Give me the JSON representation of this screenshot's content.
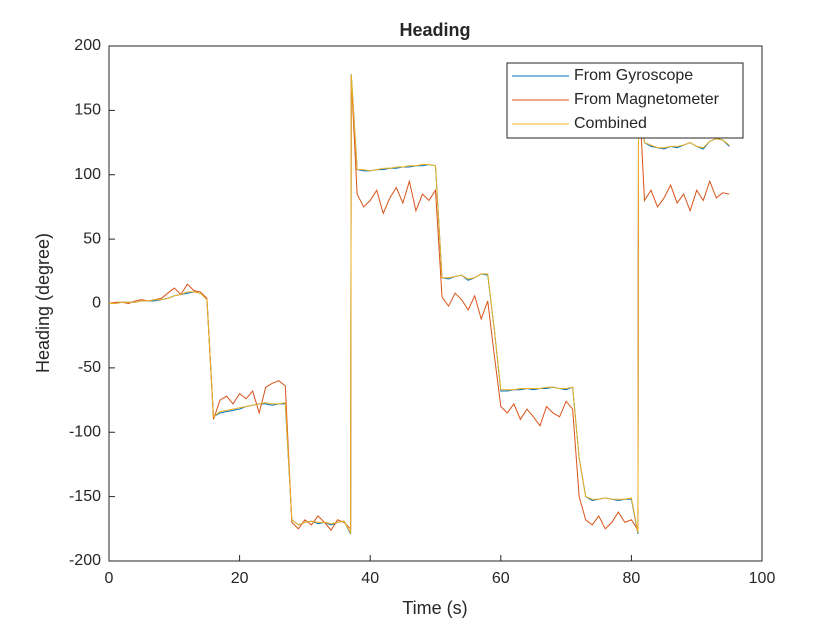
{
  "chart_data": {
    "type": "line",
    "title": "Heading",
    "x_label": "Time (s)",
    "y_label": "Heading (degree)",
    "x": [
      0,
      1,
      2,
      3,
      4,
      5,
      6,
      7,
      8,
      9,
      10,
      11,
      12,
      13,
      14,
      15,
      16,
      17,
      18,
      19,
      20,
      21,
      22,
      23,
      24,
      25,
      26,
      27,
      28,
      29,
      30,
      31,
      32,
      33,
      34,
      35,
      36,
      37,
      37.1,
      38,
      39,
      40,
      41,
      42,
      43,
      44,
      45,
      46,
      47,
      48,
      49,
      50,
      51,
      52,
      53,
      54,
      55,
      56,
      57,
      58,
      59,
      60,
      61,
      62,
      63,
      64,
      65,
      66,
      67,
      68,
      69,
      70,
      71,
      72,
      73,
      74,
      75,
      76,
      77,
      78,
      79,
      80,
      81,
      81.1,
      82,
      83,
      84,
      85,
      86,
      87,
      88,
      89,
      90,
      91,
      92,
      93,
      94,
      95
    ],
    "series": [
      {
        "name": "From Gyroscope",
        "color": "#0072BD",
        "values": [
          0,
          0,
          1,
          1,
          1,
          2,
          2,
          2,
          3,
          4,
          6,
          7,
          8,
          9,
          8,
          3,
          -88,
          -85,
          -84,
          -83,
          -82,
          -80,
          -79,
          -78,
          -78,
          -79,
          -78,
          -78,
          -168,
          -172,
          -170,
          -169,
          -171,
          -170,
          -172,
          -170,
          -169,
          -179,
          178,
          104,
          103,
          103,
          104,
          104,
          105,
          105,
          106,
          106,
          107,
          107,
          108,
          107,
          20,
          19,
          21,
          22,
          18,
          20,
          23,
          22,
          -20,
          -68,
          -68,
          -67,
          -67,
          -66,
          -67,
          -66,
          -66,
          -65,
          -66,
          -67,
          -65,
          -120,
          -150,
          -153,
          -152,
          -151,
          -152,
          -153,
          -152,
          -152,
          -179,
          178,
          125,
          122,
          121,
          120,
          122,
          121,
          123,
          125,
          122,
          120,
          126,
          128,
          127,
          122
        ]
      },
      {
        "name": "From Magnetometer",
        "color": "#D95319",
        "values": [
          0,
          1,
          1,
          0,
          2,
          3,
          2,
          3,
          4,
          8,
          12,
          7,
          15,
          10,
          9,
          4,
          -90,
          -75,
          -72,
          -78,
          -70,
          -74,
          -68,
          -85,
          -65,
          -62,
          -60,
          -64,
          -170,
          -175,
          -168,
          -172,
          -165,
          -170,
          -176,
          -168,
          -170,
          -175,
          176,
          85,
          75,
          80,
          88,
          70,
          82,
          90,
          78,
          95,
          72,
          85,
          80,
          88,
          5,
          -2,
          8,
          3,
          -5,
          6,
          -12,
          2,
          -40,
          -80,
          -85,
          -78,
          -90,
          -82,
          -88,
          -95,
          -80,
          -85,
          -88,
          -76,
          -82,
          -150,
          -168,
          -172,
          -165,
          -175,
          -170,
          -162,
          -170,
          -168,
          -176,
          172,
          80,
          88,
          75,
          82,
          92,
          78,
          85,
          72,
          88,
          80,
          95,
          82,
          86,
          85
        ]
      },
      {
        "name": "Combined",
        "color": "#EDB120",
        "values": [
          0,
          0,
          1,
          1,
          1,
          2,
          2,
          3,
          3,
          4,
          6,
          7,
          9,
          9,
          8,
          3,
          -88,
          -84,
          -83,
          -82,
          -81,
          -80,
          -79,
          -78,
          -77,
          -78,
          -78,
          -77,
          -168,
          -172,
          -170,
          -169,
          -170,
          -170,
          -171,
          -170,
          -169,
          -178,
          178,
          104,
          104,
          103,
          104,
          105,
          105,
          106,
          106,
          107,
          107,
          108,
          108,
          107,
          20,
          20,
          21,
          22,
          19,
          20,
          23,
          23,
          -20,
          -67,
          -67,
          -67,
          -66,
          -66,
          -66,
          -66,
          -65,
          -65,
          -66,
          -66,
          -65,
          -120,
          -150,
          -152,
          -152,
          -151,
          -152,
          -152,
          -152,
          -151,
          -178,
          178,
          125,
          123,
          121,
          121,
          122,
          122,
          123,
          125,
          122,
          121,
          126,
          128,
          127,
          123
        ]
      }
    ],
    "xlim": [
      0,
      100
    ],
    "xticks": [
      0,
      20,
      40,
      60,
      80,
      100
    ],
    "ylim": [
      -200,
      200
    ],
    "yticks": [
      -200,
      -150,
      -100,
      -50,
      0,
      50,
      100,
      150,
      200
    ],
    "legend": "northeast"
  }
}
